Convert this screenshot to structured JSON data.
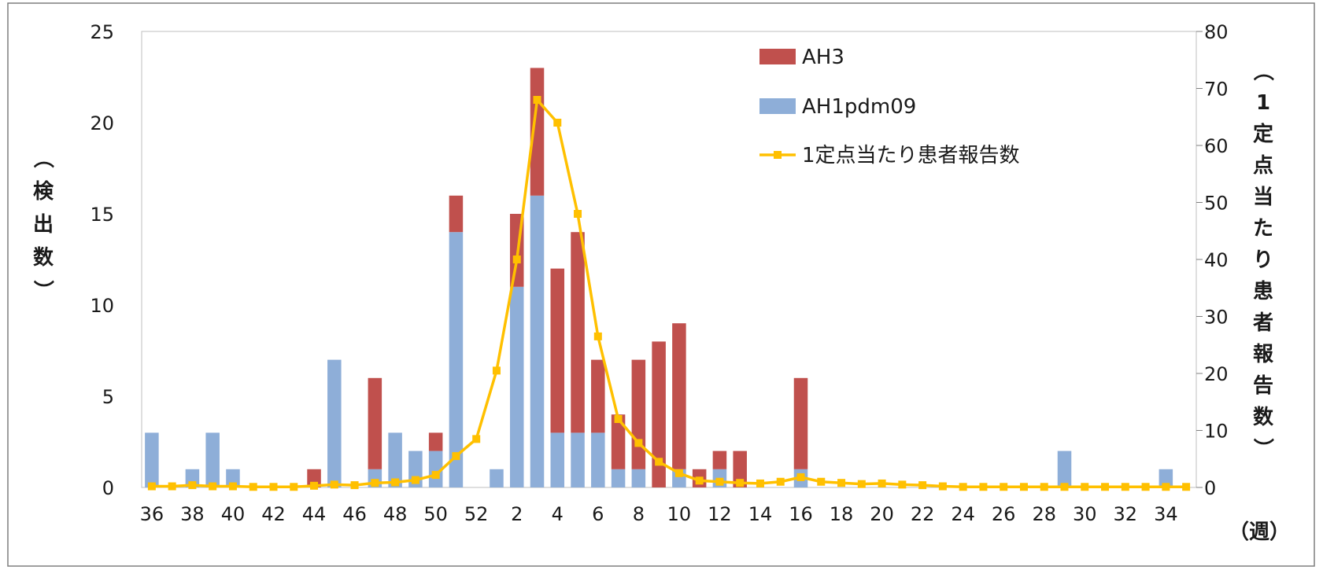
{
  "chart_data": {
    "type": "bar",
    "stacked": true,
    "x": [
      36,
      37,
      38,
      39,
      40,
      41,
      42,
      43,
      44,
      45,
      46,
      47,
      48,
      49,
      50,
      51,
      52,
      1,
      2,
      3,
      4,
      5,
      6,
      7,
      8,
      9,
      10,
      11,
      12,
      13,
      14,
      15,
      16,
      17,
      18,
      19,
      20,
      21,
      22,
      23,
      24,
      25,
      26,
      27,
      28,
      29,
      30,
      31,
      32,
      33,
      34,
      35
    ],
    "x_tick_labels": [
      "36",
      "38",
      "40",
      "42",
      "44",
      "46",
      "48",
      "50",
      "52",
      "2",
      "4",
      "6",
      "8",
      "10",
      "12",
      "14",
      "16",
      "18",
      "20",
      "22",
      "24",
      "26",
      "28",
      "30",
      "32",
      "34"
    ],
    "x_unit": "（週）",
    "series": [
      {
        "name": "AH1pdm09",
        "kind": "bar",
        "axis": "left",
        "color": "#8eaed8",
        "values": [
          3,
          0,
          1,
          3,
          1,
          0,
          0,
          0,
          0,
          7,
          0,
          1,
          3,
          2,
          2,
          14,
          0,
          1,
          11,
          16,
          3,
          3,
          3,
          1,
          1,
          0,
          1,
          0,
          1,
          0,
          0,
          0,
          1,
          0,
          0,
          0,
          0,
          0,
          0,
          0,
          0,
          0,
          0,
          0,
          0,
          2,
          0,
          0,
          0,
          0,
          1,
          0
        ]
      },
      {
        "name": "AH3",
        "kind": "bar",
        "axis": "left",
        "color": "#c0504d",
        "values": [
          0,
          0,
          0,
          0,
          0,
          0,
          0,
          0,
          1,
          0,
          0,
          5,
          0,
          0,
          1,
          2,
          0,
          0,
          4,
          7,
          9,
          11,
          4,
          3,
          6,
          8,
          8,
          1,
          1,
          2,
          0,
          0,
          5,
          0,
          0,
          0,
          0,
          0,
          0,
          0,
          0,
          0,
          0,
          0,
          0,
          0,
          0,
          0,
          0,
          0,
          0,
          0
        ]
      },
      {
        "name": "1定点当たり患者報告数",
        "kind": "line",
        "axis": "right",
        "color": "#ffc000",
        "values": [
          0.2,
          0.2,
          0.4,
          0.2,
          0.2,
          0.1,
          0.1,
          0.1,
          0.3,
          0.5,
          0.4,
          0.8,
          0.9,
          1.3,
          2.2,
          5.5,
          8.5,
          20.5,
          40,
          68,
          64,
          48,
          26.5,
          12,
          7.8,
          4.5,
          2.5,
          1.2,
          1,
          0.8,
          0.7,
          1,
          1.8,
          1,
          0.8,
          0.6,
          0.7,
          0.5,
          0.4,
          0.2,
          0.1,
          0.1,
          0.1,
          0.1,
          0.1,
          0.1,
          0.1,
          0.1,
          0.1,
          0.1,
          0.1,
          0.1
        ]
      }
    ],
    "ylabel": "（検出数）",
    "ylim": [
      0,
      25
    ],
    "yticks": [
      0,
      5,
      10,
      15,
      20,
      25
    ],
    "y2label": "（1定点当たり患者報告数）",
    "y2lim": [
      0,
      80
    ],
    "y2ticks": [
      0,
      10,
      20,
      30,
      40,
      50,
      60,
      70,
      80
    ],
    "legend": [
      "AH3",
      "AH1pdm09",
      "1定点当たり患者報告数"
    ],
    "legend_position": "top-center",
    "grid": false
  }
}
